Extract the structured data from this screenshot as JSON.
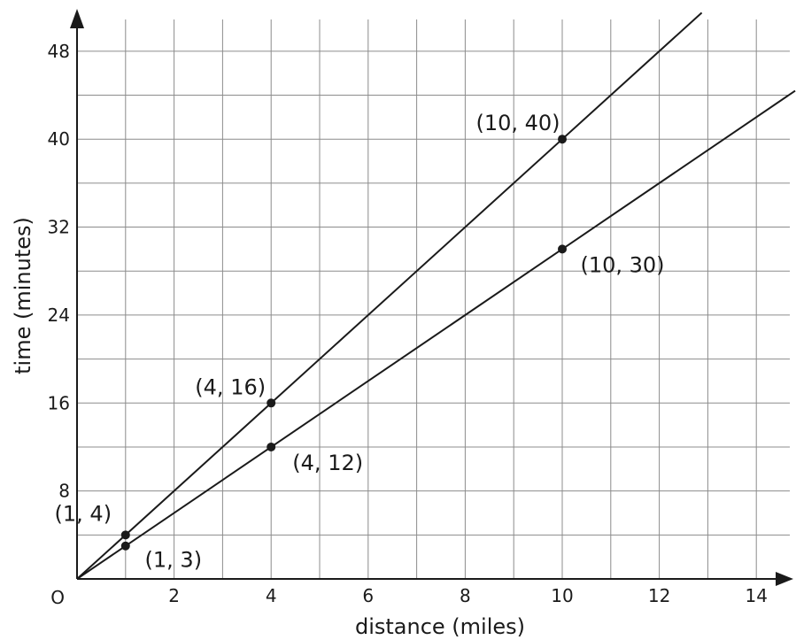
{
  "chart_data": {
    "type": "line",
    "title": "",
    "xlabel": "distance (miles)",
    "ylabel": "time (minutes)",
    "origin_label": "O",
    "xlim": [
      0,
      14.8
    ],
    "ylim": [
      0,
      51.5
    ],
    "grid": true,
    "x_grid_step": 1,
    "y_grid_step": 4,
    "x_ticks": [
      2,
      4,
      6,
      8,
      10,
      12,
      14
    ],
    "y_ticks": [
      8,
      16,
      24,
      32,
      40,
      48
    ],
    "x_tick_labels": [
      "2",
      "4",
      "6",
      "8",
      "10",
      "12",
      "14"
    ],
    "y_tick_labels": [
      "8",
      "16",
      "24",
      "32",
      "40",
      "48"
    ],
    "series": [
      {
        "slope": 4,
        "points": [
          {
            "x": 1,
            "y": 4,
            "label": "(1, 4)"
          },
          {
            "x": 4,
            "y": 16,
            "label": "(4, 16)"
          },
          {
            "x": 10,
            "y": 40,
            "label": "(10, 40)"
          }
        ]
      },
      {
        "slope": 3,
        "points": [
          {
            "x": 1,
            "y": 3,
            "label": "(1, 3)"
          },
          {
            "x": 4,
            "y": 12,
            "label": "(4, 12)"
          },
          {
            "x": 10,
            "y": 30,
            "label": "(10, 30)"
          }
        ]
      }
    ]
  }
}
